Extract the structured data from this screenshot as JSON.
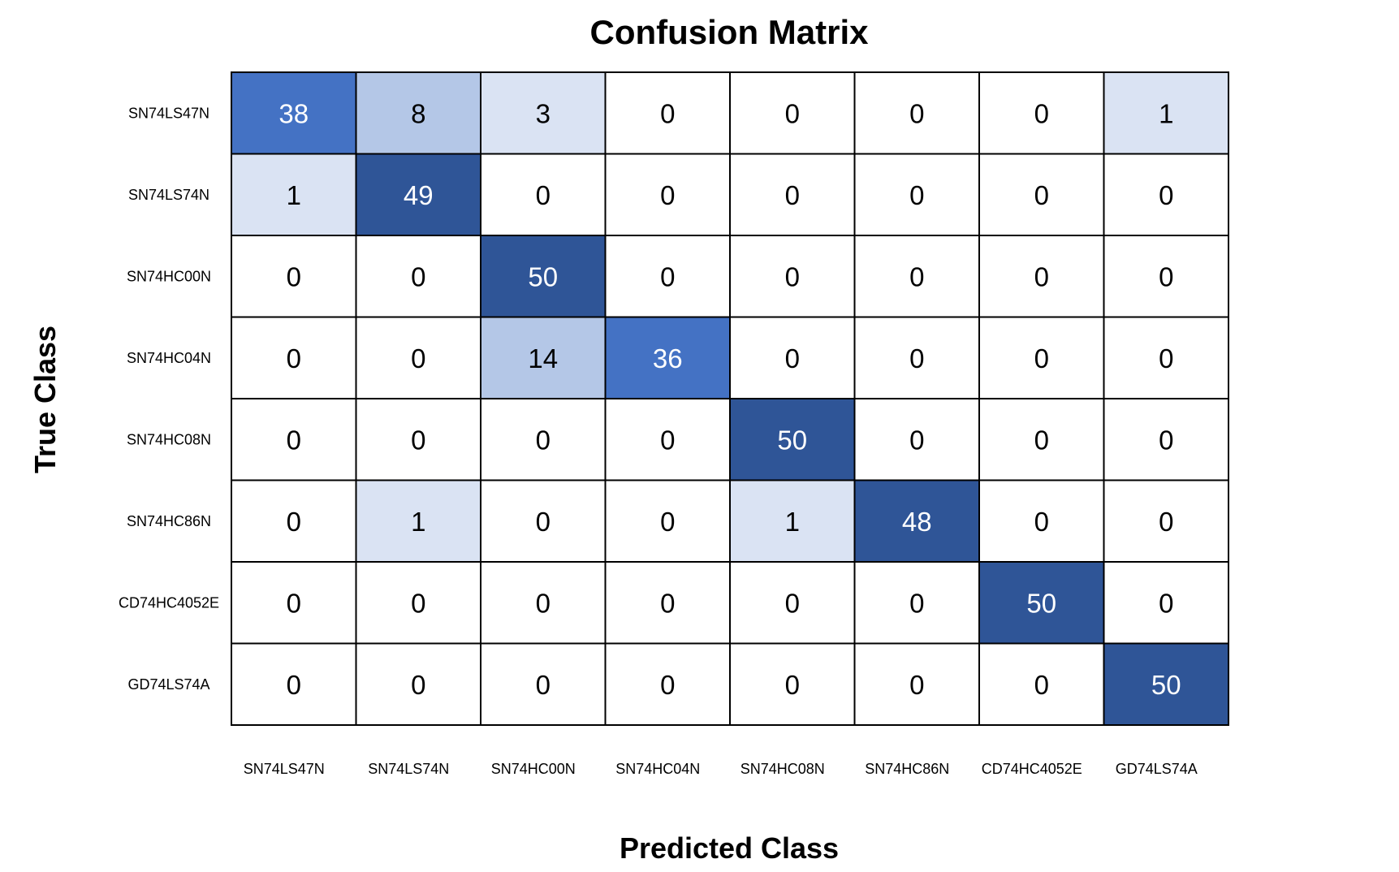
{
  "chart_data": {
    "type": "heatmap",
    "title": "Confusion Matrix",
    "xlabel": "Predicted Class",
    "ylabel": "True Class",
    "x_categories": [
      "SN74LS47N",
      "SN74LS74N",
      "SN74HC00N",
      "SN74HC04N",
      "SN74HC08N",
      "SN74HC86N",
      "CD74HC4052E",
      "GD74LS74A"
    ],
    "y_categories": [
      "SN74LS47N",
      "SN74LS74N",
      "SN74HC00N",
      "SN74HC04N",
      "SN74HC08N",
      "SN74HC86N",
      "CD74HC4052E",
      "GD74LS74A"
    ],
    "values": [
      [
        38,
        8,
        3,
        0,
        0,
        0,
        0,
        1
      ],
      [
        1,
        49,
        0,
        0,
        0,
        0,
        0,
        0
      ],
      [
        0,
        0,
        50,
        0,
        0,
        0,
        0,
        0
      ],
      [
        0,
        0,
        14,
        36,
        0,
        0,
        0,
        0
      ],
      [
        0,
        0,
        0,
        0,
        50,
        0,
        0,
        0
      ],
      [
        0,
        1,
        0,
        0,
        1,
        48,
        0,
        0
      ],
      [
        0,
        0,
        0,
        0,
        0,
        0,
        50,
        0
      ],
      [
        0,
        0,
        0,
        0,
        0,
        0,
        0,
        50
      ]
    ],
    "colors": {
      "zero": "#ffffff",
      "very_low": "#dae3f3",
      "low": "#b4c7e7",
      "medium": "#4472c4",
      "high": "#2f5597",
      "text_dark": "#000000",
      "text_light": "#ffffff",
      "grid": "#000000"
    }
  }
}
